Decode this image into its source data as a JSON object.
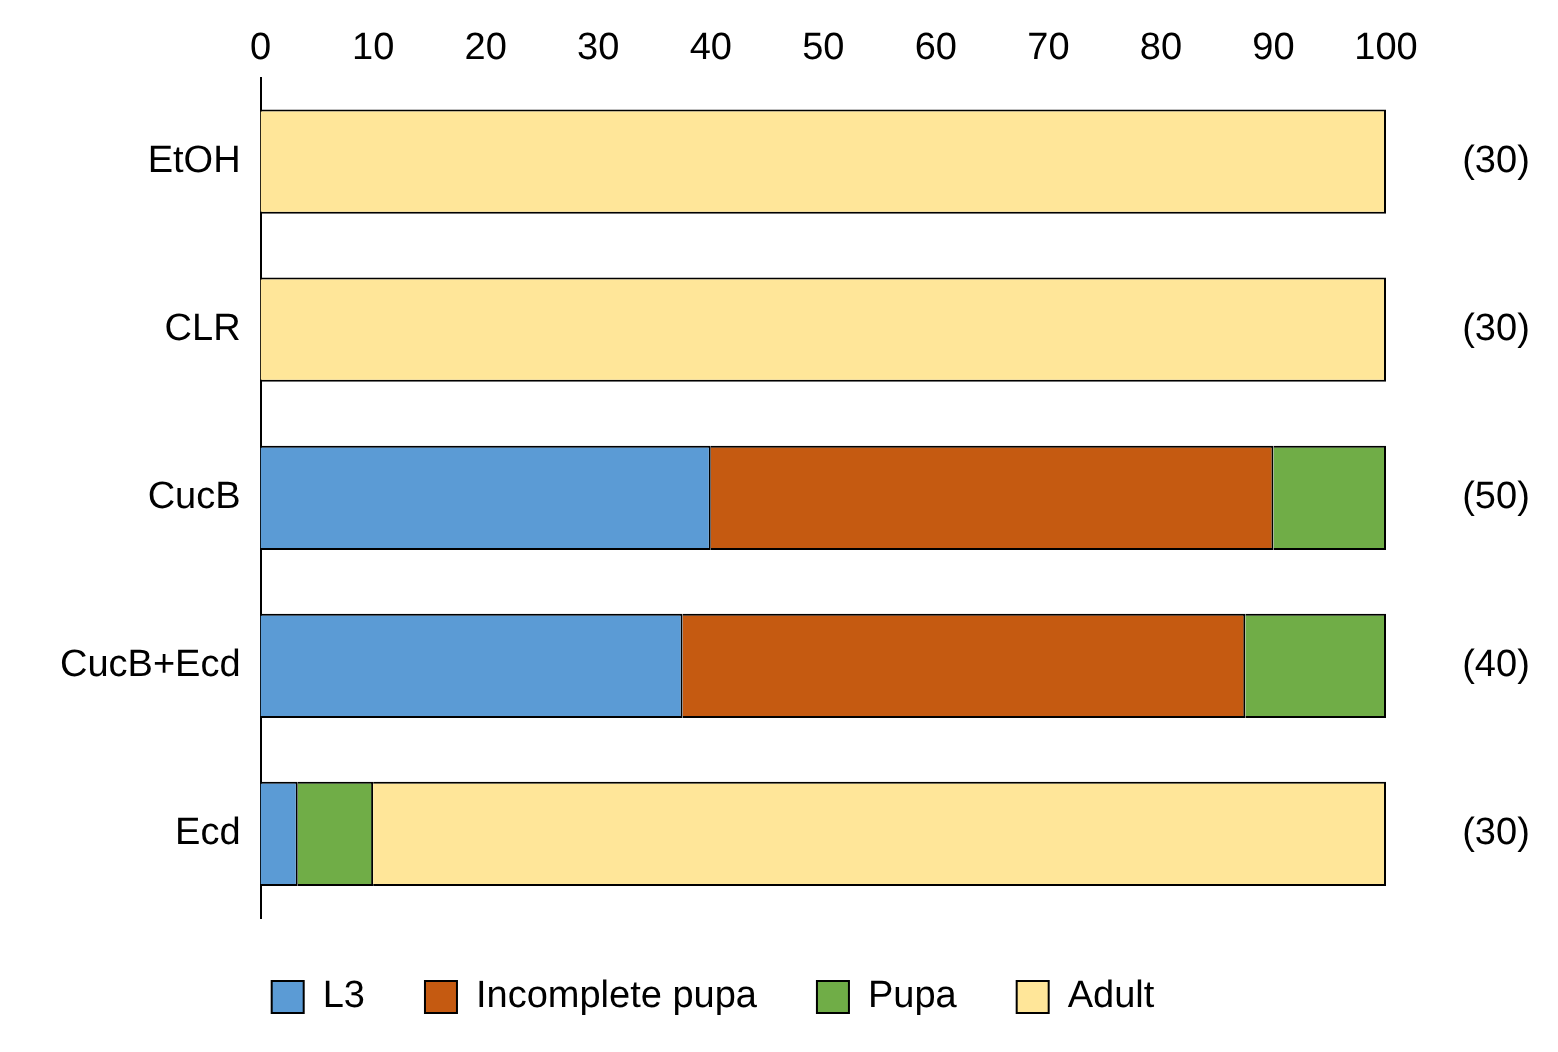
{
  "chart_data": {
    "type": "bar",
    "orientation": "horizontal",
    "stacked": true,
    "categories": [
      "EtOH",
      "CLR",
      "CucB",
      "CucB+Ecd",
      "Ecd"
    ],
    "series": [
      {
        "name": "L3",
        "color": "#5b9bd5",
        "values": [
          0,
          0,
          40,
          37.5,
          3.3
        ]
      },
      {
        "name": "Incomplete pupa",
        "color": "#c55a11",
        "values": [
          0,
          0,
          50,
          50,
          0
        ]
      },
      {
        "name": "Pupa",
        "color": "#70ad47",
        "values": [
          0,
          0,
          10,
          12.5,
          6.7
        ]
      },
      {
        "name": "Adult",
        "color": "#ffe699",
        "values": [
          100,
          100,
          0,
          0,
          90
        ]
      }
    ],
    "xlim": [
      0,
      100
    ],
    "xticks": [
      0,
      10,
      20,
      30,
      40,
      50,
      60,
      70,
      80,
      90,
      100
    ],
    "grid": false,
    "legend": "bottom",
    "annotations": [
      "(30)",
      "(30)",
      "(50)",
      "(40)",
      "(30)"
    ]
  }
}
